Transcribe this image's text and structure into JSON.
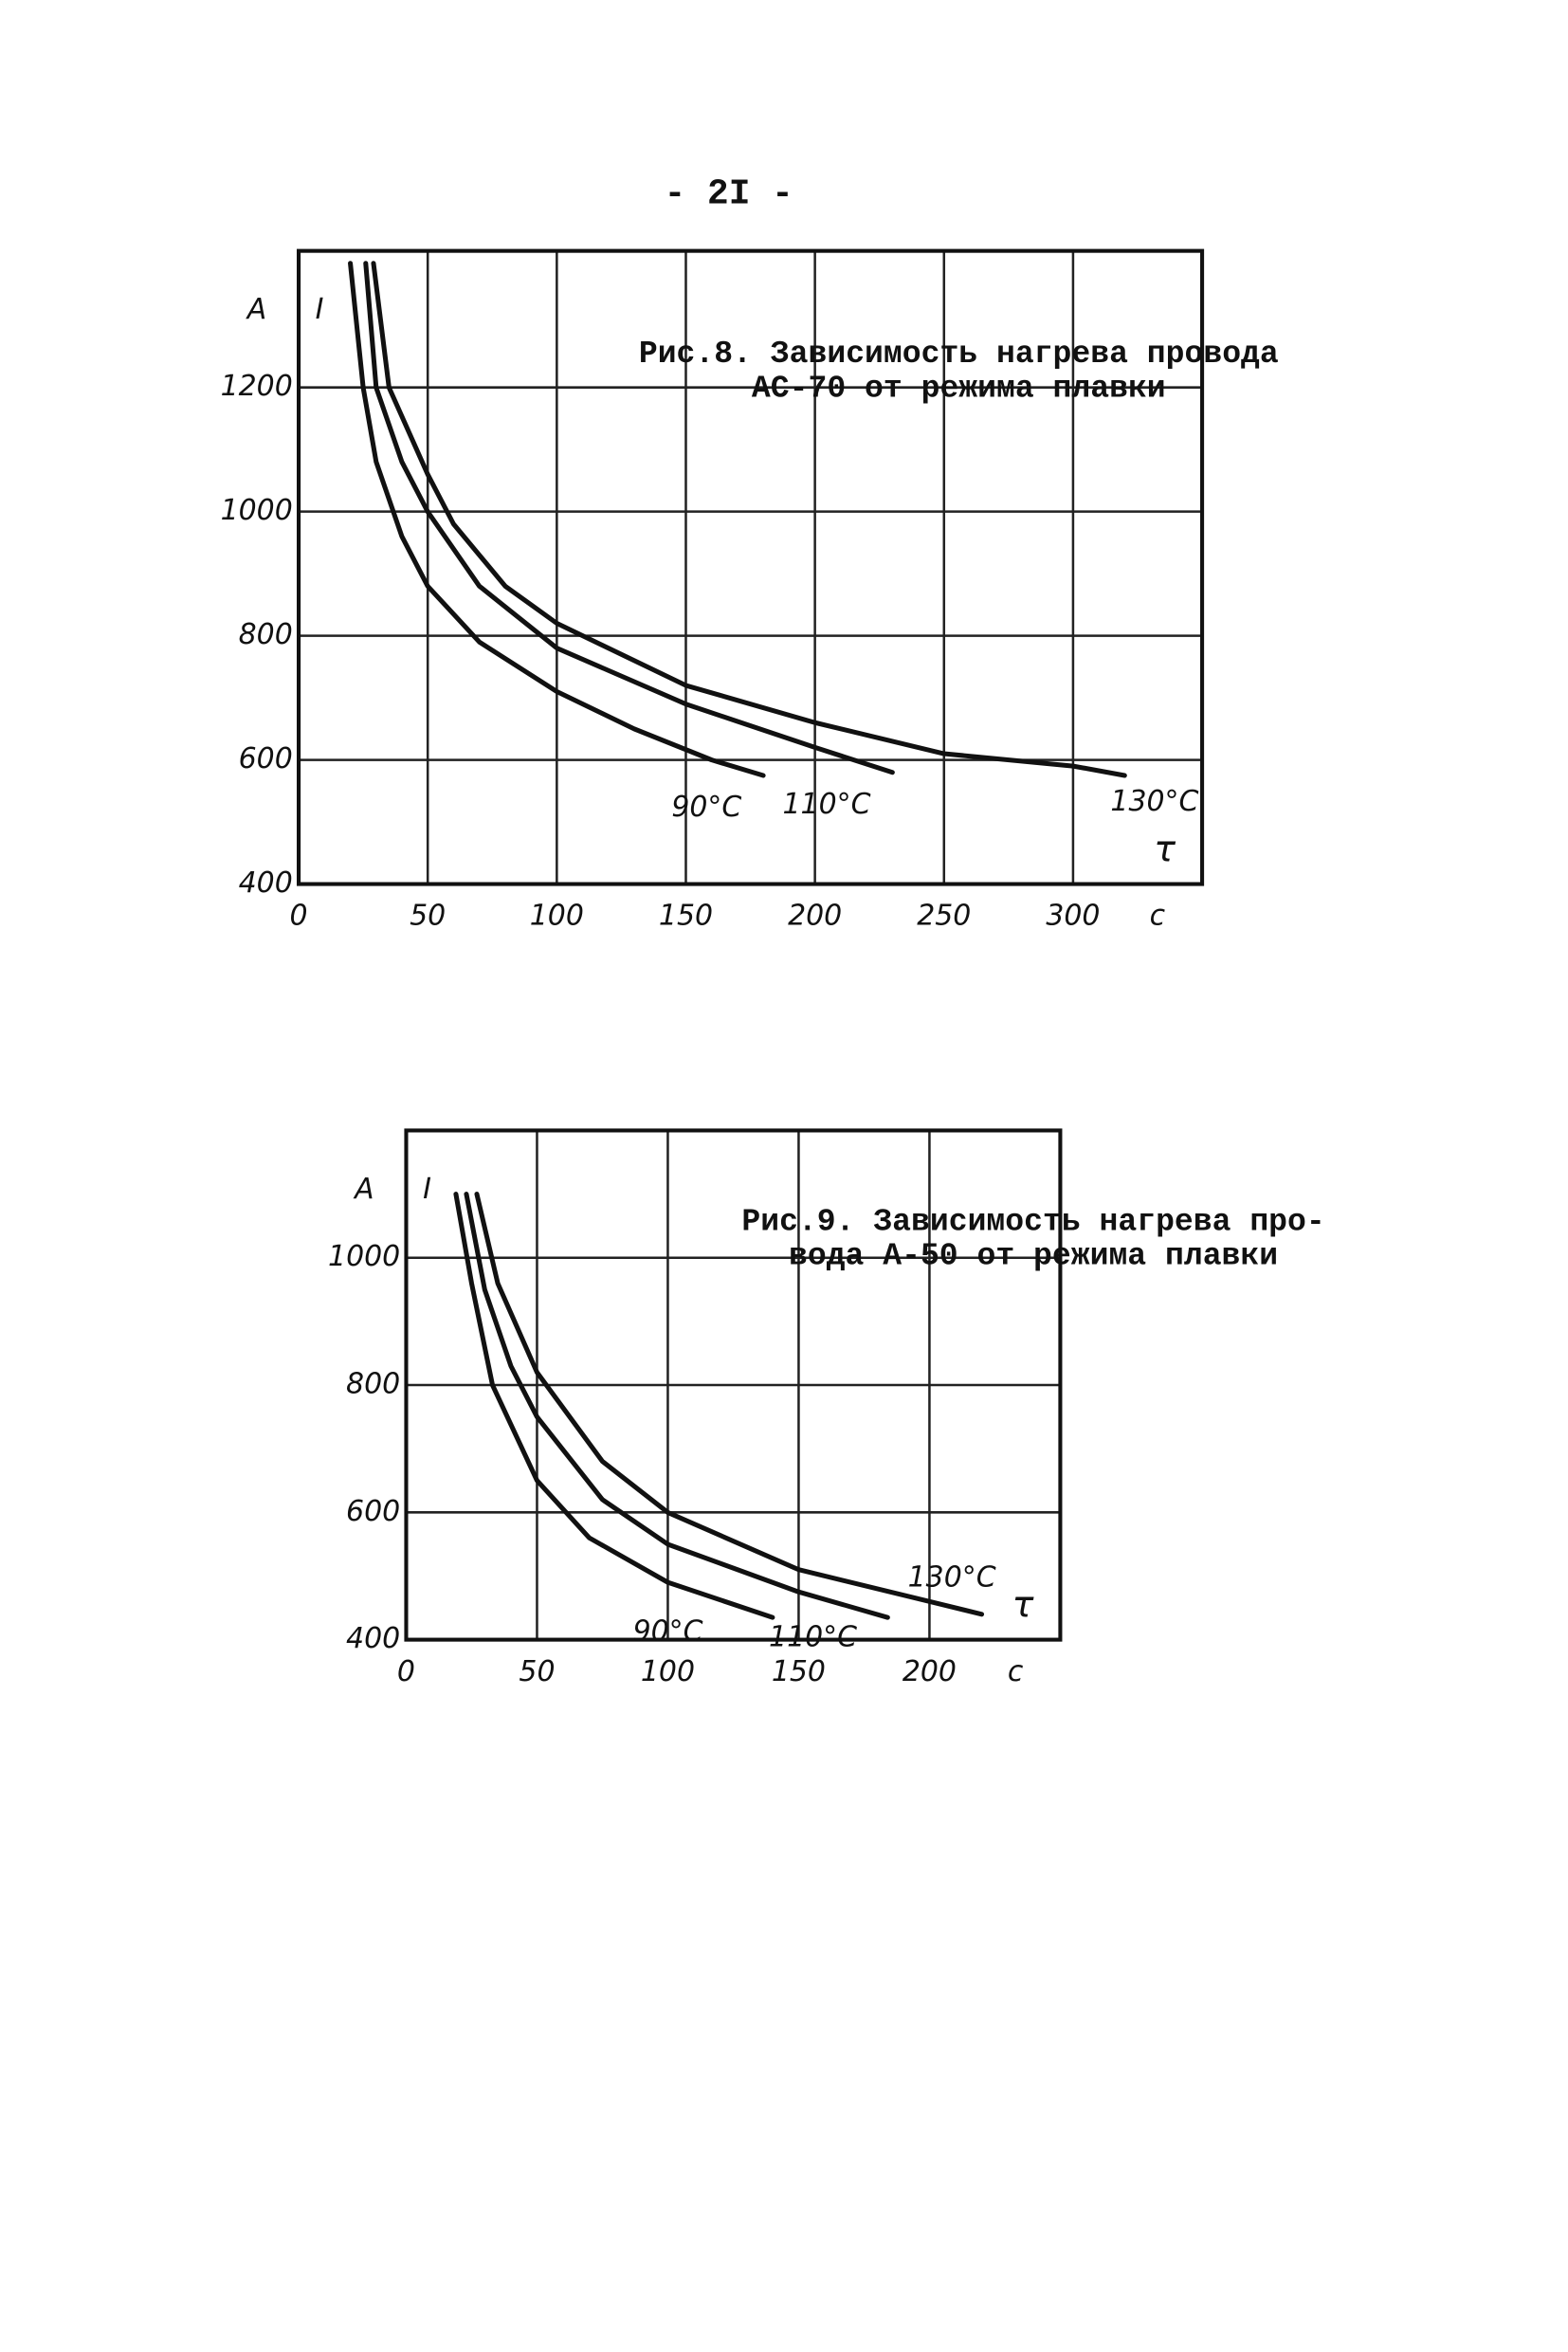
{
  "page_number": "- 2I -",
  "chart_data": [
    {
      "type": "line",
      "title_lines": [
        "Рис.8. Зависимость нагрева провода",
        "АС-70 от режима плавки"
      ],
      "y_unit": "A",
      "y_label": "I",
      "x_label": "τ",
      "x_unit": "c",
      "xlim": [
        0,
        350
      ],
      "ylim": [
        400,
        1420
      ],
      "xticks": [
        0,
        50,
        100,
        150,
        200,
        250,
        300
      ],
      "yticks": [
        400,
        600,
        800,
        1000,
        1200
      ],
      "grid": true,
      "series": [
        {
          "name": "90°C",
          "color": "#111111",
          "x": [
            20,
            25,
            30,
            40,
            50,
            70,
            100,
            130,
            160,
            180
          ],
          "values": [
            1400,
            1200,
            1080,
            960,
            880,
            790,
            710,
            650,
            600,
            575
          ]
        },
        {
          "name": "110°C",
          "color": "#111111",
          "x": [
            26,
            30,
            40,
            50,
            70,
            100,
            150,
            200,
            230
          ],
          "values": [
            1400,
            1200,
            1080,
            1000,
            880,
            780,
            690,
            620,
            580
          ]
        },
        {
          "name": "130°C",
          "color": "#111111",
          "x": [
            29,
            35,
            50,
            60,
            80,
            100,
            150,
            200,
            250,
            300,
            320
          ],
          "values": [
            1400,
            1200,
            1060,
            980,
            880,
            820,
            720,
            660,
            610,
            590,
            575
          ]
        }
      ]
    },
    {
      "type": "line",
      "title_lines": [
        "Рис.9. Зависимость нагрева про-",
        "вода А-50 от режима плавки"
      ],
      "y_unit": "A",
      "y_label": "I",
      "x_label": "τ",
      "x_unit": "c",
      "xlim": [
        0,
        250
      ],
      "ylim": [
        400,
        1200
      ],
      "xticks": [
        0,
        50,
        100,
        150,
        200
      ],
      "yticks": [
        400,
        600,
        800,
        1000
      ],
      "grid": true,
      "series": [
        {
          "name": "90°C",
          "color": "#111111",
          "x": [
            19,
            25,
            33,
            50,
            70,
            100,
            140
          ],
          "values": [
            1100,
            960,
            800,
            650,
            560,
            490,
            435
          ]
        },
        {
          "name": "110°C",
          "color": "#111111",
          "x": [
            23,
            30,
            40,
            50,
            75,
            100,
            150,
            184
          ],
          "values": [
            1100,
            950,
            830,
            750,
            620,
            550,
            475,
            435
          ]
        },
        {
          "name": "130°C",
          "color": "#111111",
          "x": [
            27,
            35,
            50,
            75,
            100,
            150,
            200,
            220
          ],
          "values": [
            1100,
            960,
            820,
            680,
            600,
            510,
            460,
            440
          ]
        }
      ]
    }
  ]
}
